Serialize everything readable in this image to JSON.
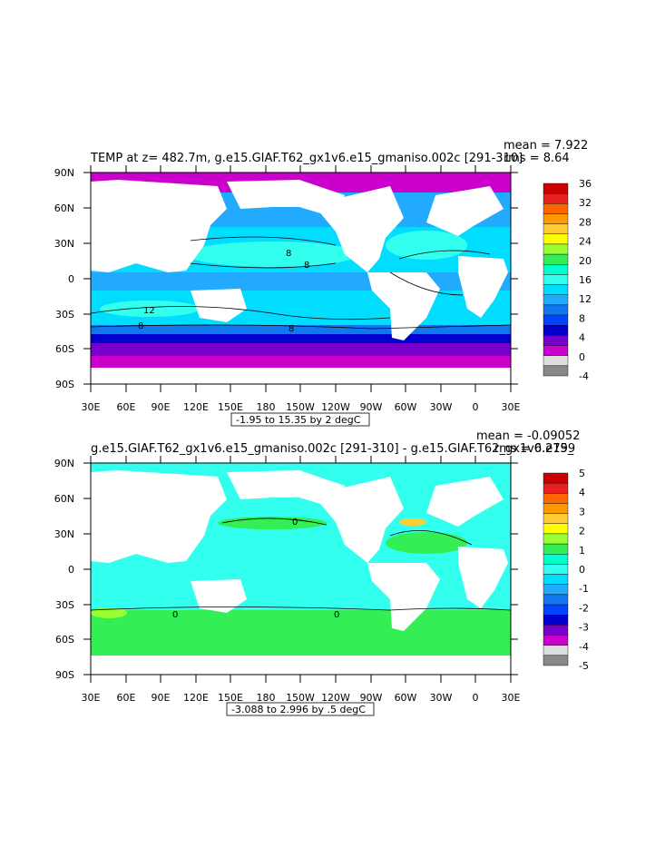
{
  "panels": [
    {
      "title": "TEMP at z= 482.7m, g.e15.GIAF.T62_gx1v6.e15_gmaniso.002c [291-310]",
      "stat_mean": "mean = 7.922",
      "stat_rms": "rms = 8.64",
      "range_note": "-1.95 to 15.35 by 2 degC",
      "lat_labels": [
        "90N",
        "60N",
        "30N",
        "0",
        "30S",
        "60S",
        "90S"
      ],
      "lon_labels": [
        "30E",
        "60E",
        "90E",
        "120E",
        "150E",
        "180",
        "150W",
        "120W",
        "90W",
        "60W",
        "30W",
        "0",
        "30E"
      ],
      "colorbar_labels": [
        "36",
        "32",
        "28",
        "24",
        "20",
        "16",
        "12",
        "8",
        "4",
        "0",
        "-4"
      ],
      "colorbar_colors": [
        "#cc0000",
        "#e82020",
        "#ff6600",
        "#ff9900",
        "#ffcc33",
        "#ffff00",
        "#99ff33",
        "#33ee55",
        "#00ffcc",
        "#33ffee",
        "#00ddff",
        "#22aaff",
        "#1177ee",
        "#0044ff",
        "#0000cc",
        "#7700cc",
        "#cc00cc",
        "#dddddd",
        "#888888"
      ],
      "contour_labels": [
        "8",
        "8",
        "12",
        "8",
        "8"
      ],
      "land_color": "#ffffff",
      "field_colors": {
        "polar": "#cc00cc",
        "cold": "#7700cc",
        "blue": "#0000cc",
        "mid": "#1177ee",
        "warm": "#00ddff"
      }
    },
    {
      "title": "g.e15.GIAF.T62_gx1v6.e15_gmaniso.002c [291-310] - g.e15.GIAF.T62_gx1v6.e15_",
      "stat_mean": "mean = -0.09052",
      "stat_rms": "rms = 0.2799",
      "range_note": "-3.088 to 2.996 by .5 degC",
      "lat_labels": [
        "90N",
        "60N",
        "30N",
        "0",
        "30S",
        "60S",
        "90S"
      ],
      "lon_labels": [
        "30E",
        "60E",
        "90E",
        "120E",
        "150E",
        "180",
        "150W",
        "120W",
        "90W",
        "60W",
        "30W",
        "0",
        "30E"
      ],
      "colorbar_labels": [
        "5",
        "4",
        "3",
        "2",
        "1",
        "0",
        "-1",
        "-2",
        "-3",
        "-4",
        "-5"
      ],
      "colorbar_colors": [
        "#cc0000",
        "#e82020",
        "#ff6600",
        "#ff9900",
        "#ffcc33",
        "#ffff00",
        "#99ff33",
        "#33ee55",
        "#00ffcc",
        "#33ffee",
        "#00ddff",
        "#22aaff",
        "#1177ee",
        "#0044ff",
        "#0000cc",
        "#7700cc",
        "#cc00cc",
        "#dddddd",
        "#888888"
      ],
      "contour_labels": [
        "0",
        "0",
        "0"
      ],
      "land_color": "#ffffff",
      "field_colors": {
        "near_zero": "#33ffee",
        "positive": "#33ee55",
        "warm": "#ffcc33",
        "cold": "#0000cc"
      }
    }
  ]
}
